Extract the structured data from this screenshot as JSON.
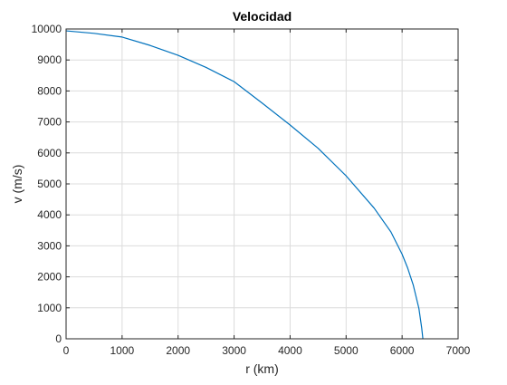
{
  "chart_data": {
    "type": "line",
    "title": "Velocidad",
    "xlabel": "r (km)",
    "ylabel": "v (m/s)",
    "xlim": [
      0,
      7000
    ],
    "ylim": [
      0,
      10000
    ],
    "xticks": [
      0,
      1000,
      2000,
      3000,
      4000,
      5000,
      6000,
      7000
    ],
    "yticks": [
      0,
      1000,
      2000,
      3000,
      4000,
      5000,
      6000,
      7000,
      8000,
      9000,
      10000
    ],
    "grid": true,
    "colors": {
      "line": "#0072bd",
      "grid": "#dcdcdc",
      "axis": "#262626"
    },
    "series": [
      {
        "x": [
          0,
          500,
          1000,
          1500,
          2000,
          2500,
          3000,
          3500,
          4000,
          4500,
          5000,
          5500,
          5800,
          6000,
          6100,
          6200,
          6300,
          6350,
          6371
        ],
        "y": [
          9940,
          9860,
          9740,
          9470,
          9150,
          8760,
          8300,
          7610,
          6900,
          6150,
          5260,
          4220,
          3450,
          2730,
          2280,
          1730,
          980,
          350,
          0
        ]
      }
    ]
  }
}
